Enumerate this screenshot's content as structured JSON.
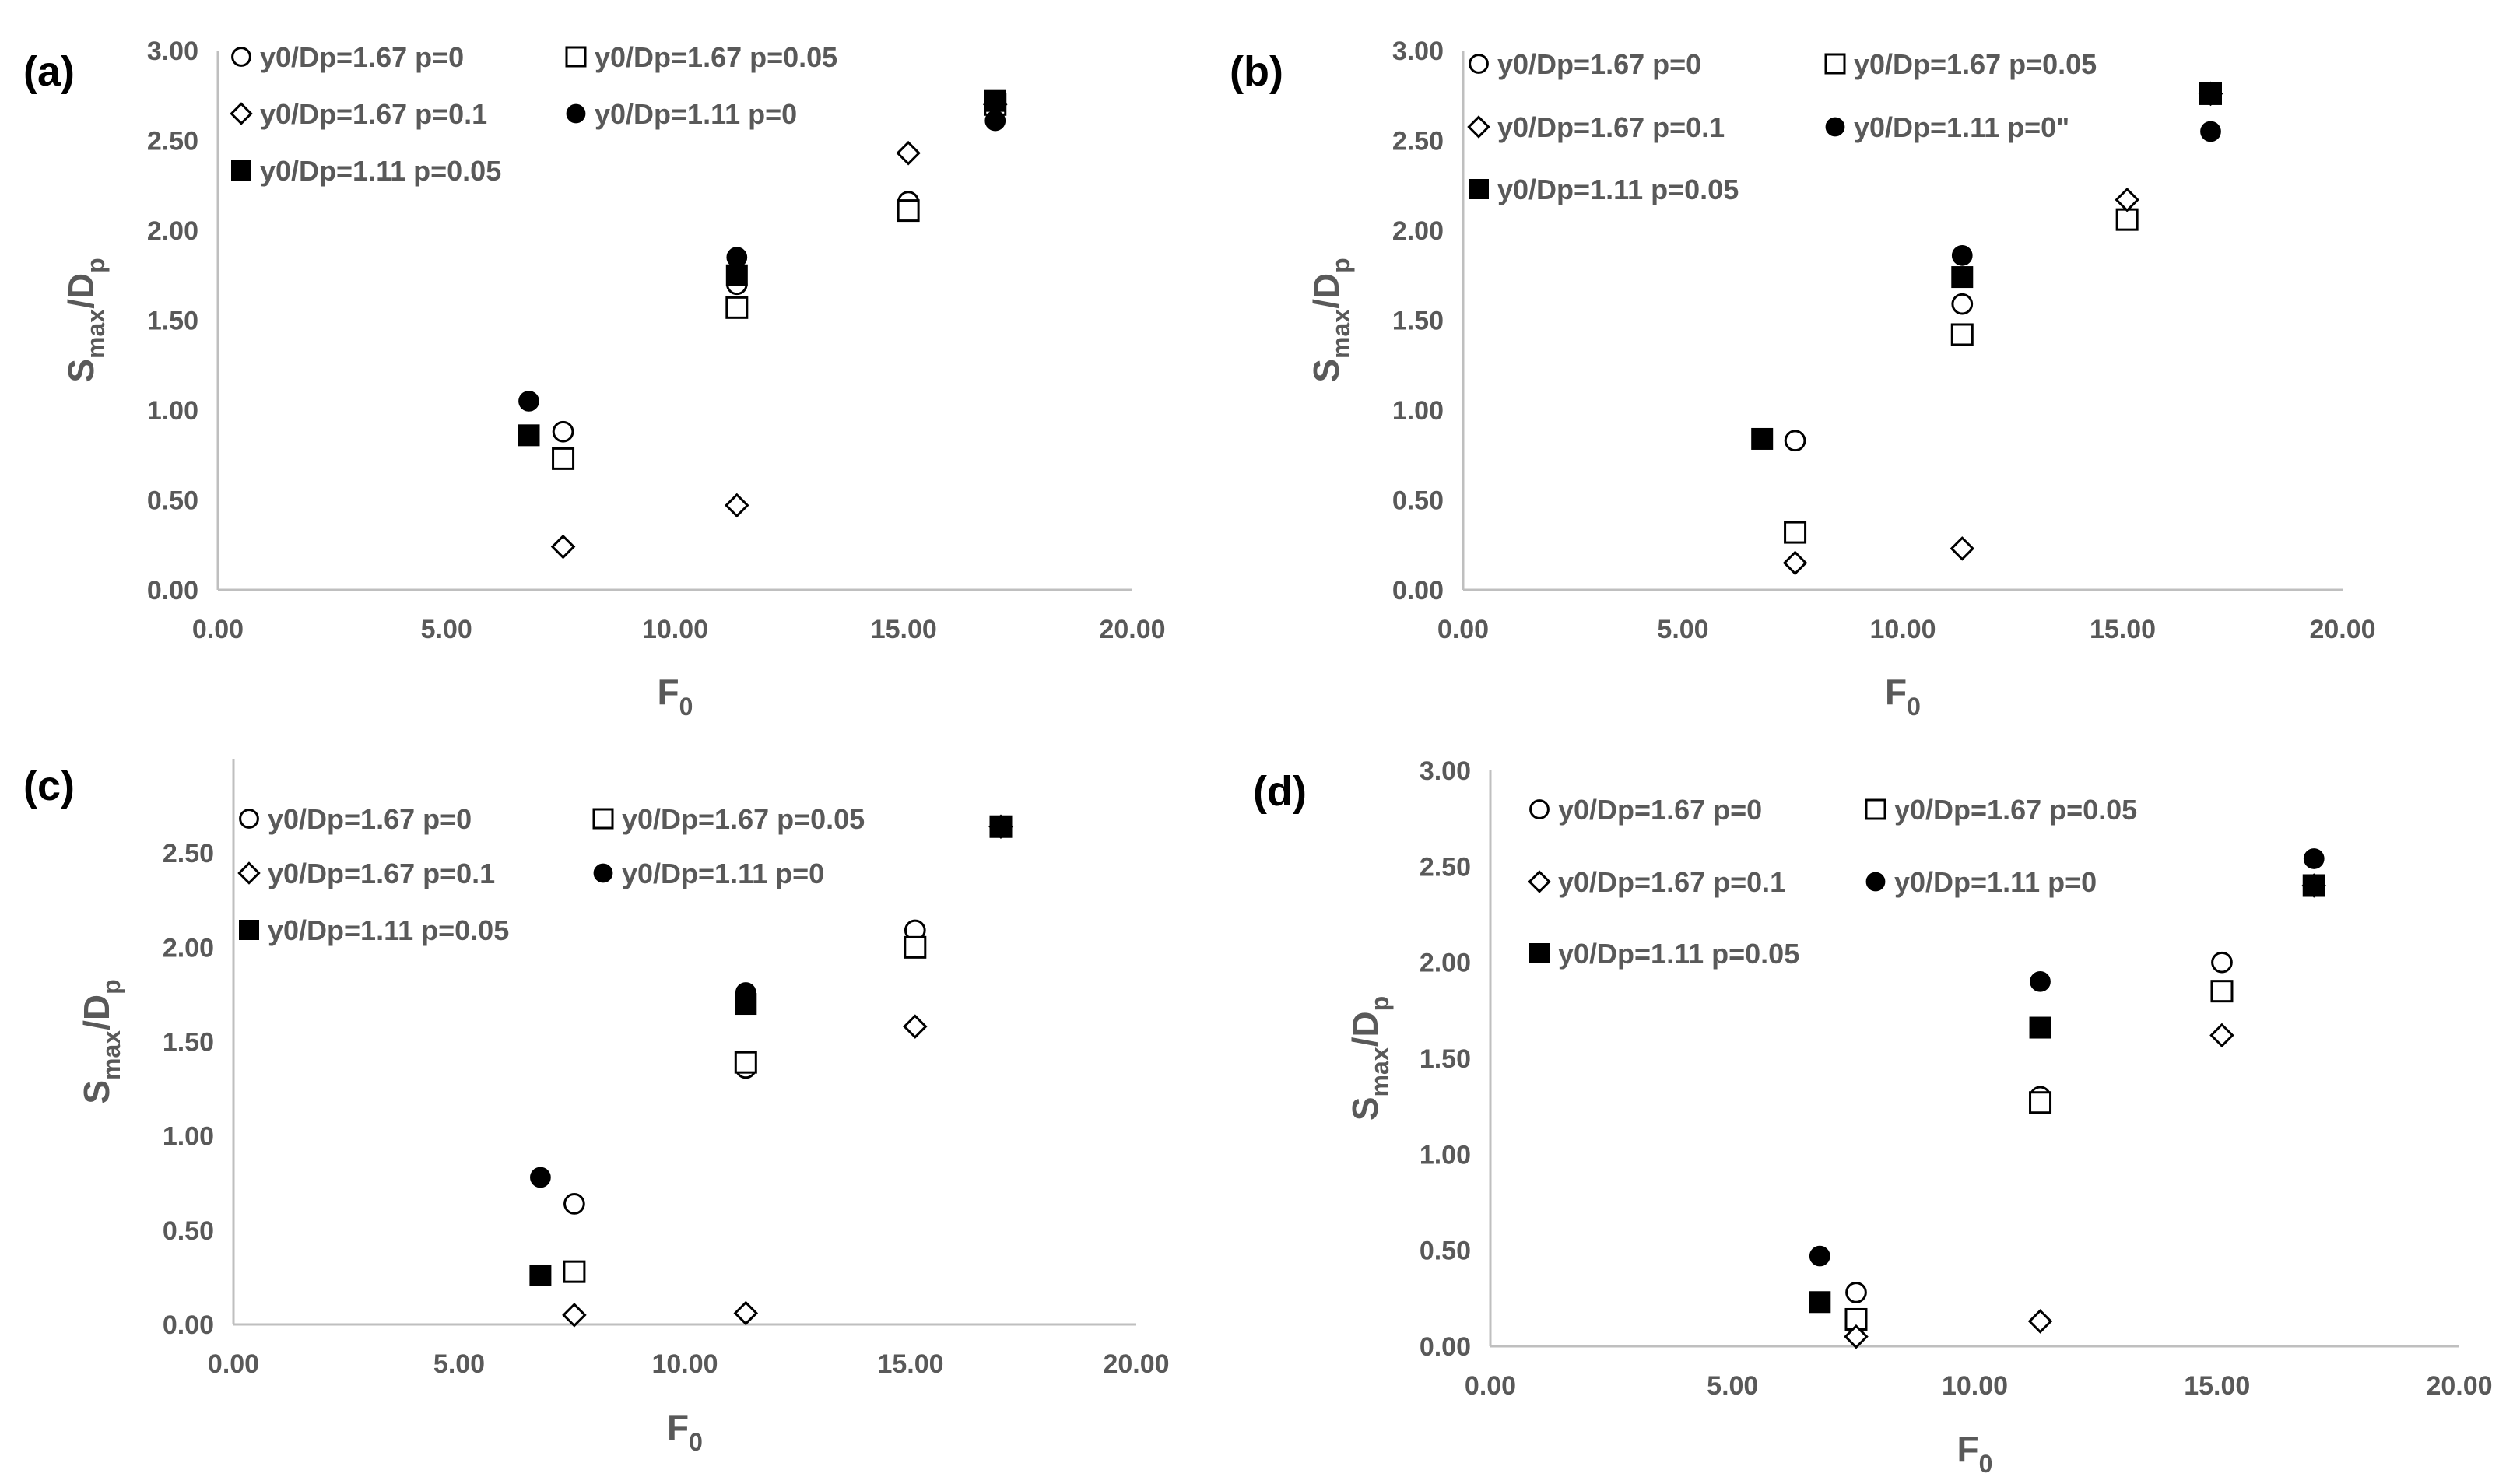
{
  "chart_data": [
    {
      "type": "scatter",
      "panel_label": "(a)",
      "xlabel": "F",
      "xlabel_sub": "0",
      "ylabel": "S",
      "ylabel_sub": "max",
      "ylabel_suffix": "/D",
      "ylabel_suffix_sub": "p",
      "xlim": [
        0,
        20
      ],
      "ylim": [
        0,
        3
      ],
      "x_ticks": [
        "0.00",
        "5.00",
        "10.00",
        "15.00",
        "20.00"
      ],
      "y_ticks": [
        "0.00",
        "0.50",
        "1.00",
        "1.50",
        "2.00",
        "2.50",
        "3.00"
      ],
      "grid": false,
      "legend_position": "top-left",
      "series": [
        {
          "name": "y0/Dp=1.67 p=0",
          "marker": "circle-open",
          "points": [
            [
              7.55,
              0.88
            ],
            [
              11.35,
              1.7
            ],
            [
              15.1,
              2.16
            ],
            [
              17.0,
              2.7
            ]
          ]
        },
        {
          "name": "y0/Dp=1.67 p=0.05",
          "marker": "square-open",
          "points": [
            [
              7.55,
              0.73
            ],
            [
              11.35,
              1.57
            ],
            [
              15.1,
              2.11
            ],
            [
              17.0,
              2.7
            ]
          ]
        },
        {
          "name": "y0/Dp=1.67 p=0.1",
          "marker": "diamond-open",
          "points": [
            [
              7.55,
              0.24
            ],
            [
              11.35,
              0.47
            ],
            [
              15.1,
              2.43
            ],
            [
              17.0,
              2.7
            ]
          ]
        },
        {
          "name": "y0/Dp=1.11 p=0",
          "marker": "circle-filled",
          "points": [
            [
              6.8,
              1.05
            ],
            [
              11.35,
              1.85
            ],
            [
              17.0,
              2.61
            ]
          ]
        },
        {
          "name": "y0/Dp=1.11 p=0.05",
          "marker": "square-filled",
          "points": [
            [
              6.8,
              0.86
            ],
            [
              11.35,
              1.75
            ],
            [
              17.0,
              2.72
            ]
          ]
        }
      ]
    },
    {
      "type": "scatter",
      "panel_label": "(b)",
      "xlabel": "F",
      "xlabel_sub": "0",
      "ylabel": "S",
      "ylabel_sub": "max",
      "ylabel_suffix": "/D",
      "ylabel_suffix_sub": "p",
      "xlim": [
        0,
        20
      ],
      "ylim": [
        0,
        3
      ],
      "x_ticks": [
        "0.00",
        "5.00",
        "10.00",
        "15.00",
        "20.00"
      ],
      "y_ticks": [
        "0.00",
        "0.50",
        "1.00",
        "1.50",
        "2.00",
        "2.50",
        "3.00"
      ],
      "grid": false,
      "legend_position": "top-left",
      "series": [
        {
          "name": "y0/Dp=1.67 p=0",
          "marker": "circle-open",
          "points": [
            [
              7.55,
              0.83
            ],
            [
              11.35,
              1.59
            ],
            [
              15.1,
              2.06
            ],
            [
              17.0,
              2.76
            ]
          ]
        },
        {
          "name": "y0/Dp=1.67 p=0.05",
          "marker": "square-open",
          "points": [
            [
              7.55,
              0.32
            ],
            [
              11.35,
              1.42
            ],
            [
              15.1,
              2.06
            ],
            [
              17.0,
              2.76
            ]
          ]
        },
        {
          "name": "y0/Dp=1.67 p=0.1",
          "marker": "diamond-open",
          "points": [
            [
              7.55,
              0.15
            ],
            [
              11.35,
              0.23
            ],
            [
              15.1,
              2.17
            ],
            [
              17.0,
              2.76
            ]
          ]
        },
        {
          "name": "y0/Dp=1.11 p=0\"",
          "marker": "circle-filled",
          "points": [
            [
              6.8,
              0.84
            ],
            [
              11.35,
              1.86
            ],
            [
              17.0,
              2.55
            ]
          ]
        },
        {
          "name": "y0/Dp=1.11 p=0.05",
          "marker": "square-filled",
          "points": [
            [
              6.8,
              0.84
            ],
            [
              11.35,
              1.74
            ],
            [
              17.0,
              2.76
            ]
          ]
        }
      ]
    },
    {
      "type": "scatter",
      "panel_label": "(c)",
      "xlabel": "F",
      "xlabel_sub": "0",
      "ylabel": "S",
      "ylabel_sub": "max",
      "ylabel_suffix": "/D",
      "ylabel_suffix_sub": "p",
      "xlim": [
        0,
        20
      ],
      "ylim": [
        0,
        3
      ],
      "x_ticks": [
        "0.00",
        "5.00",
        "10.00",
        "15.00",
        "20.00"
      ],
      "y_ticks": [
        "0.00",
        "0.50",
        "1.00",
        "1.50",
        "2.00",
        "2.50"
      ],
      "grid": false,
      "legend_position": "top-left",
      "series": [
        {
          "name": "y0/Dp=1.67 p=0",
          "marker": "circle-open",
          "points": [
            [
              7.55,
              0.64
            ],
            [
              11.35,
              1.36
            ],
            [
              15.1,
              2.09
            ],
            [
              17.0,
              2.64
            ]
          ]
        },
        {
          "name": "y0/Dp=1.67 p=0.05",
          "marker": "square-open",
          "points": [
            [
              7.55,
              0.28
            ],
            [
              11.35,
              1.39
            ],
            [
              15.1,
              2.0
            ],
            [
              17.0,
              2.64
            ]
          ]
        },
        {
          "name": "y0/Dp=1.67 p=0.1",
          "marker": "diamond-open",
          "points": [
            [
              7.55,
              0.05
            ],
            [
              11.35,
              0.06
            ],
            [
              15.1,
              1.58
            ],
            [
              17.0,
              2.64
            ]
          ]
        },
        {
          "name": "y0/Dp=1.11 p=0",
          "marker": "circle-filled",
          "points": [
            [
              6.8,
              0.78
            ],
            [
              11.35,
              1.76
            ],
            [
              17.0,
              2.64
            ]
          ]
        },
        {
          "name": "y0/Dp=1.11 p=0.05",
          "marker": "square-filled",
          "points": [
            [
              6.8,
              0.26
            ],
            [
              11.35,
              1.7
            ],
            [
              17.0,
              2.64
            ]
          ]
        }
      ]
    },
    {
      "type": "scatter",
      "panel_label": "(d)",
      "xlabel": "F",
      "xlabel_sub": "0",
      "ylabel": "S",
      "ylabel_sub": "max",
      "ylabel_suffix": "/D",
      "ylabel_suffix_sub": "p",
      "xlim": [
        0,
        20
      ],
      "ylim": [
        0,
        3
      ],
      "x_ticks": [
        "0.00",
        "5.00",
        "10.00",
        "15.00",
        "20.00"
      ],
      "y_ticks": [
        "0.00",
        "0.50",
        "1.00",
        "1.50",
        "2.00",
        "2.50",
        "3.00"
      ],
      "grid": false,
      "legend_position": "top-left",
      "series": [
        {
          "name": "y0/Dp=1.67 p=0",
          "marker": "circle-open",
          "points": [
            [
              7.55,
              0.28
            ],
            [
              11.35,
              1.3
            ],
            [
              15.1,
              2.0
            ],
            [
              17.0,
              2.4
            ]
          ]
        },
        {
          "name": "y0/Dp=1.67 p=0.05",
          "marker": "square-open",
          "points": [
            [
              7.55,
              0.14
            ],
            [
              11.35,
              1.27
            ],
            [
              15.1,
              1.85
            ],
            [
              17.0,
              2.4
            ]
          ]
        },
        {
          "name": "y0/Dp=1.67 p=0.1",
          "marker": "diamond-open",
          "points": [
            [
              7.55,
              0.05
            ],
            [
              11.35,
              0.13
            ],
            [
              15.1,
              1.62
            ],
            [
              17.0,
              2.4
            ]
          ]
        },
        {
          "name": "y0/Dp=1.11 p=0",
          "marker": "circle-filled",
          "points": [
            [
              6.8,
              0.47
            ],
            [
              11.35,
              1.9
            ],
            [
              17.0,
              2.54
            ]
          ]
        },
        {
          "name": "y0/Dp=1.11 p=0.05",
          "marker": "square-filled",
          "points": [
            [
              6.8,
              0.23
            ],
            [
              11.35,
              1.66
            ],
            [
              17.0,
              2.4
            ]
          ]
        }
      ]
    }
  ]
}
